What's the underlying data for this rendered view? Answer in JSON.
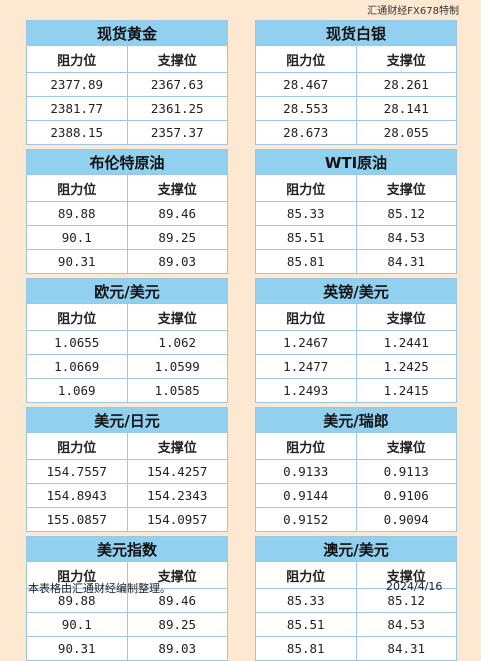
{
  "brand": "汇通财经FX678特制",
  "headers": {
    "resistance": "阻力位",
    "support": "支撑位"
  },
  "panels_left": [
    {
      "title": "现货黄金",
      "rows": [
        [
          "2377.89",
          "2367.63"
        ],
        [
          "2381.77",
          "2361.25"
        ],
        [
          "2388.15",
          "2357.37"
        ]
      ]
    },
    {
      "title": "布伦特原油",
      "rows": [
        [
          "89.88",
          "89.46"
        ],
        [
          "90.1",
          "89.25"
        ],
        [
          "90.31",
          "89.03"
        ]
      ]
    },
    {
      "title": "欧元/美元",
      "rows": [
        [
          "1.0655",
          "1.062"
        ],
        [
          "1.0669",
          "1.0599"
        ],
        [
          "1.069",
          "1.0585"
        ]
      ]
    },
    {
      "title": "美元/日元",
      "rows": [
        [
          "154.7557",
          "154.4257"
        ],
        [
          "154.8943",
          "154.2343"
        ],
        [
          "155.0857",
          "154.0957"
        ]
      ]
    },
    {
      "title": "美元指数",
      "rows": [
        [
          "89.88",
          "89.46"
        ],
        [
          "90.1",
          "89.25"
        ],
        [
          "90.31",
          "89.03"
        ]
      ]
    }
  ],
  "panels_right": [
    {
      "title": "现货白银",
      "rows": [
        [
          "28.467",
          "28.261"
        ],
        [
          "28.553",
          "28.141"
        ],
        [
          "28.673",
          "28.055"
        ]
      ]
    },
    {
      "title": "WTI原油",
      "rows": [
        [
          "85.33",
          "85.12"
        ],
        [
          "85.51",
          "84.53"
        ],
        [
          "85.81",
          "84.31"
        ]
      ]
    },
    {
      "title": "英镑/美元",
      "rows": [
        [
          "1.2467",
          "1.2441"
        ],
        [
          "1.2477",
          "1.2425"
        ],
        [
          "1.2493",
          "1.2415"
        ]
      ]
    },
    {
      "title": "美元/瑞郎",
      "rows": [
        [
          "0.9133",
          "0.9113"
        ],
        [
          "0.9144",
          "0.9106"
        ],
        [
          "0.9152",
          "0.9094"
        ]
      ]
    },
    {
      "title": "澳元/美元",
      "rows": [
        [
          "85.33",
          "85.12"
        ],
        [
          "85.51",
          "84.53"
        ],
        [
          "85.81",
          "84.31"
        ]
      ]
    }
  ],
  "footer": {
    "note": "本表格由汇通财经编制整理。",
    "date": "2024/4/16"
  }
}
